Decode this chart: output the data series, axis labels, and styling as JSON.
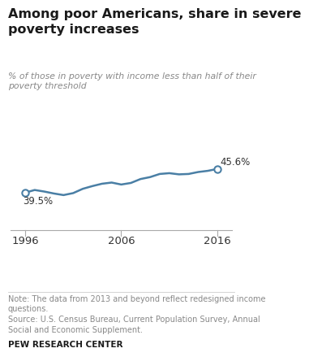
{
  "title": "Among poor Americans, share in severe\npoverty increases",
  "subtitle": "% of those in poverty with income less than half of their\npoverty threshold",
  "years": [
    1996,
    1997,
    1998,
    1999,
    2000,
    2001,
    2002,
    2003,
    2004,
    2005,
    2006,
    2007,
    2008,
    2009,
    2010,
    2011,
    2012,
    2013,
    2014,
    2015,
    2016
  ],
  "values": [
    39.5,
    40.2,
    39.8,
    39.3,
    38.9,
    39.4,
    40.5,
    41.2,
    41.8,
    42.1,
    41.6,
    42.0,
    43.0,
    43.5,
    44.3,
    44.5,
    44.2,
    44.3,
    44.8,
    45.1,
    45.6
  ],
  "line_color": "#4a7fa5",
  "marker_color": "white",
  "marker_edge_color": "#4a7fa5",
  "start_label": "39.5%",
  "end_label": "45.6%",
  "x_ticks": [
    1996,
    2006,
    2016
  ],
  "xlim": [
    1994.5,
    2017.5
  ],
  "ylim": [
    30,
    60
  ],
  "note": "Note: The data from 2013 and beyond reflect redesigned income\nquestions.\nSource: U.S. Census Bureau, Current Population Survey, Annual\nSocial and Economic Supplement.",
  "branding": "PEW RESEARCH CENTER",
  "title_color": "#1a1a1a",
  "subtitle_color": "#888888",
  "note_color": "#888888",
  "branding_color": "#1a1a1a",
  "background_color": "#ffffff",
  "title_fontsize": 11.5,
  "subtitle_fontsize": 7.8,
  "note_fontsize": 7.0,
  "branding_fontsize": 7.5,
  "tick_fontsize": 9.5
}
